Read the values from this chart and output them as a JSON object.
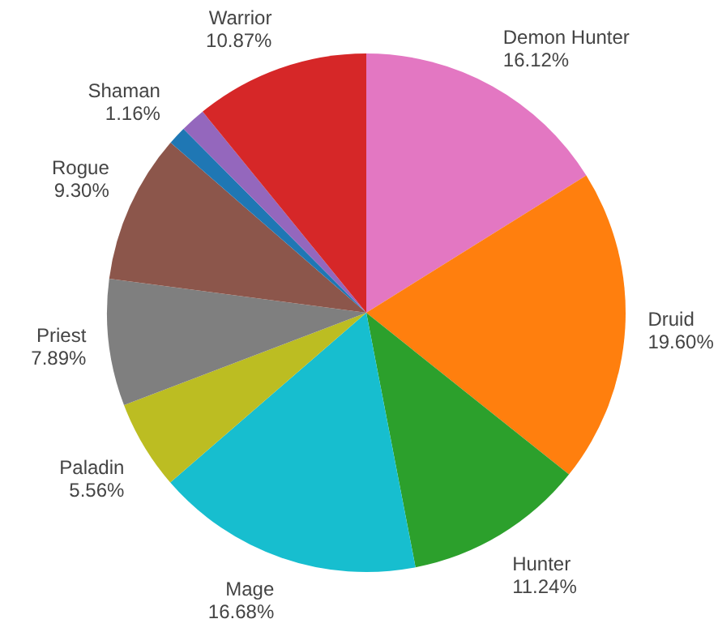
{
  "chart_data": {
    "type": "pie",
    "categories": [
      "Demon Hunter",
      "Druid",
      "Hunter",
      "Mage",
      "Paladin",
      "Priest",
      "Rogue",
      "Shaman",
      null,
      "Warrior"
    ],
    "values": [
      16.12,
      19.6,
      11.24,
      16.68,
      5.56,
      7.89,
      9.3,
      1.16,
      1.58,
      10.87
    ],
    "colors": [
      "#e377c2",
      "#ff7f0e",
      "#2ca02c",
      "#17becf",
      "#bcbd22",
      "#7f7f7f",
      "#8c564b",
      "#1f77b4",
      "#9467bd",
      "#d62728"
    ],
    "value_labels": [
      "16.12%",
      "19.60%",
      "11.24%",
      "16.68%",
      "5.56%",
      "7.89%",
      "9.30%",
      "1.16%",
      null,
      "10.87%"
    ],
    "legend": false
  }
}
